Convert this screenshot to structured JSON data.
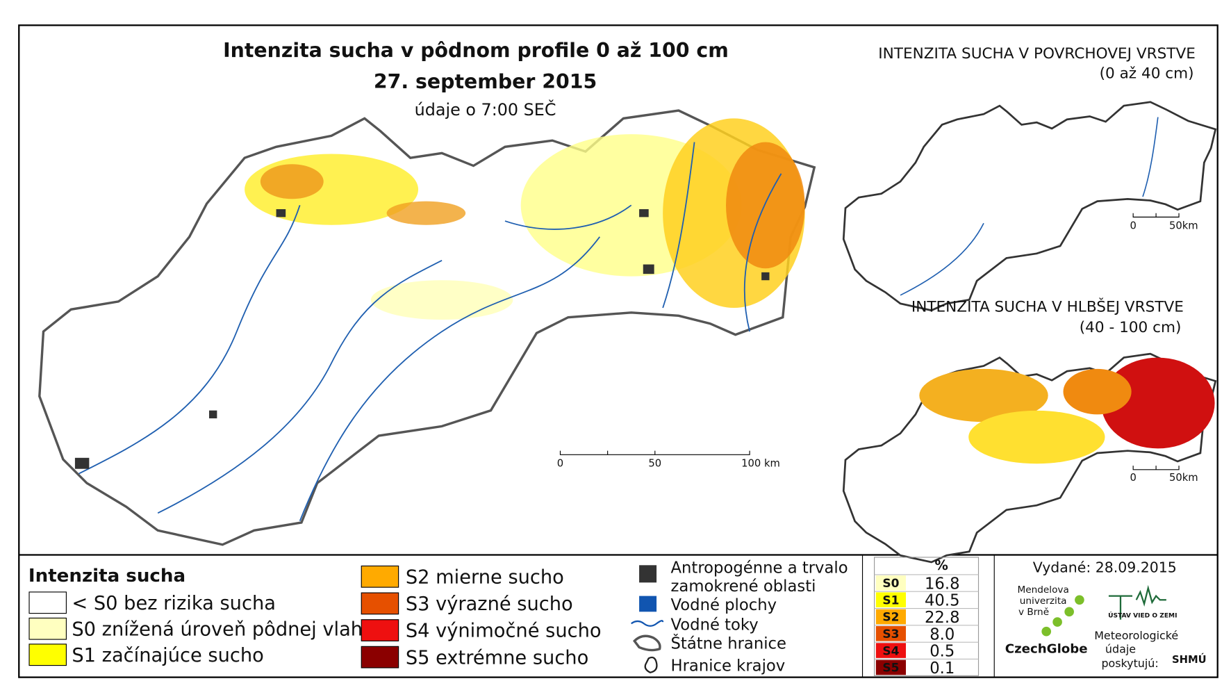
{
  "map": {
    "title": "Intenzita sucha v pôdnom profile 0 až 100 cm",
    "date": "27. september 2015",
    "subtitle": "údaje o 7:00 SEČ",
    "scale": [
      "0",
      "50",
      "100 km"
    ]
  },
  "insets": [
    {
      "title": "INTENZITA SUCHA V POVRCHOVEJ VRSTVE",
      "depth": "(0 až 40 cm)",
      "scale": [
        "0",
        "50km"
      ]
    },
    {
      "title": "INTENZITA SUCHA V HLBŠEJ VRSTVE",
      "depth": "(40 - 100 cm)",
      "scale": [
        "0",
        "50km"
      ]
    }
  ],
  "legend": {
    "title": "Intenzita sucha",
    "items": [
      {
        "label": "< S0 bez rizika sucha",
        "color": "#ffffff"
      },
      {
        "label": "S0 znížená úroveň pôdnej vlahy",
        "color": "#ffffc0"
      },
      {
        "label": "S1 začínajúce sucho",
        "color": "#ffff00"
      },
      {
        "label": "S2 mierne sucho",
        "color": "#ffaa00"
      },
      {
        "label": "S3 výrazné sucho",
        "color": "#e65000"
      },
      {
        "label": "S4 výnimočné sucho",
        "color": "#ee1010"
      },
      {
        "label": "S5 extrémne sucho",
        "color": "#8b0000"
      }
    ]
  },
  "symbols": {
    "anthropogenic": [
      "Antropogénne a trvalo",
      "zamokrené oblasti"
    ],
    "water_bodies": "Vodné plochy",
    "rivers": "Vodné toky",
    "state_border": "Štátne hranice",
    "region_border": "Hranice krajov"
  },
  "table": {
    "header": "%",
    "rows": [
      {
        "class": "S0",
        "value": "16.8",
        "color": "#ffffc0"
      },
      {
        "class": "S1",
        "value": "40.5",
        "color": "#ffff00"
      },
      {
        "class": "S2",
        "value": "22.8",
        "color": "#ffaa00"
      },
      {
        "class": "S3",
        "value": "8.0",
        "color": "#e65000"
      },
      {
        "class": "S4",
        "value": "0.5",
        "color": "#ee1010"
      },
      {
        "class": "S5",
        "value": "0.1",
        "color": "#8b0000"
      }
    ]
  },
  "issued": "Vydané: 28.09.2015",
  "credits": {
    "mendel": [
      "Mendelova",
      "univerzita",
      "v Brně"
    ],
    "czechglobe": "CzechGlobe",
    "ustav": "ÚSTAV VIED O ZEMI",
    "meteo": [
      "Meteorologické",
      "údaje",
      "poskytujú:"
    ],
    "shmu": "SHMÚ"
  }
}
